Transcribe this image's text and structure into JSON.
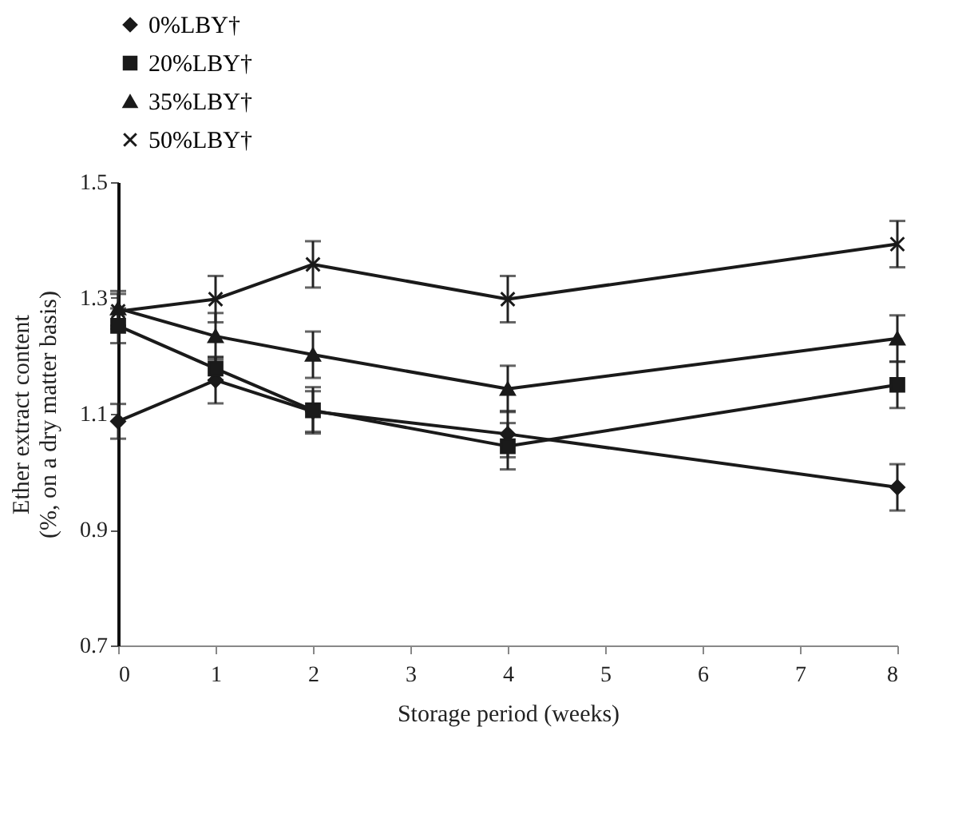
{
  "chart_data": {
    "type": "line",
    "xlabel": "Storage period (weeks)",
    "ylabel": "Ether extract content\n(%, on a dry matter basis)",
    "x": [
      0,
      1,
      2,
      4,
      8
    ],
    "xlim": [
      0,
      8
    ],
    "xticks": [
      0,
      1,
      2,
      3,
      4,
      5,
      6,
      7,
      8
    ],
    "ylim": [
      0.7,
      1.5
    ],
    "yticks": [
      0.7,
      0.9,
      1.1,
      1.3,
      1.5
    ],
    "legend": "top",
    "grid": false,
    "series": [
      {
        "name": "0%LBY†",
        "color": "#1a1a1a",
        "marker": "diamond",
        "values": [
          1.087,
          1.158,
          1.104,
          1.065,
          0.973
        ],
        "errors": [
          0.03,
          0.04,
          0.035,
          0.04,
          0.04
        ]
      },
      {
        "name": "20%LBY†",
        "color": "#1a1a1a",
        "marker": "square",
        "values": [
          1.252,
          1.178,
          1.106,
          1.044,
          1.15
        ],
        "errors": [
          0.03,
          0.02,
          0.04,
          0.04,
          0.04
        ]
      },
      {
        "name": "35%LBY†",
        "color": "#1a1a1a",
        "marker": "triangle",
        "values": [
          1.282,
          1.234,
          1.202,
          1.143,
          1.23
        ],
        "errors": [
          0.03,
          0.04,
          0.04,
          0.04,
          0.04
        ]
      },
      {
        "name": "50%LBY†",
        "color": "#1a1a1a",
        "marker": "cross",
        "values": [
          1.277,
          1.298,
          1.358,
          1.298,
          1.393
        ],
        "errors": [
          0.03,
          0.04,
          0.04,
          0.04,
          0.04
        ]
      }
    ]
  }
}
